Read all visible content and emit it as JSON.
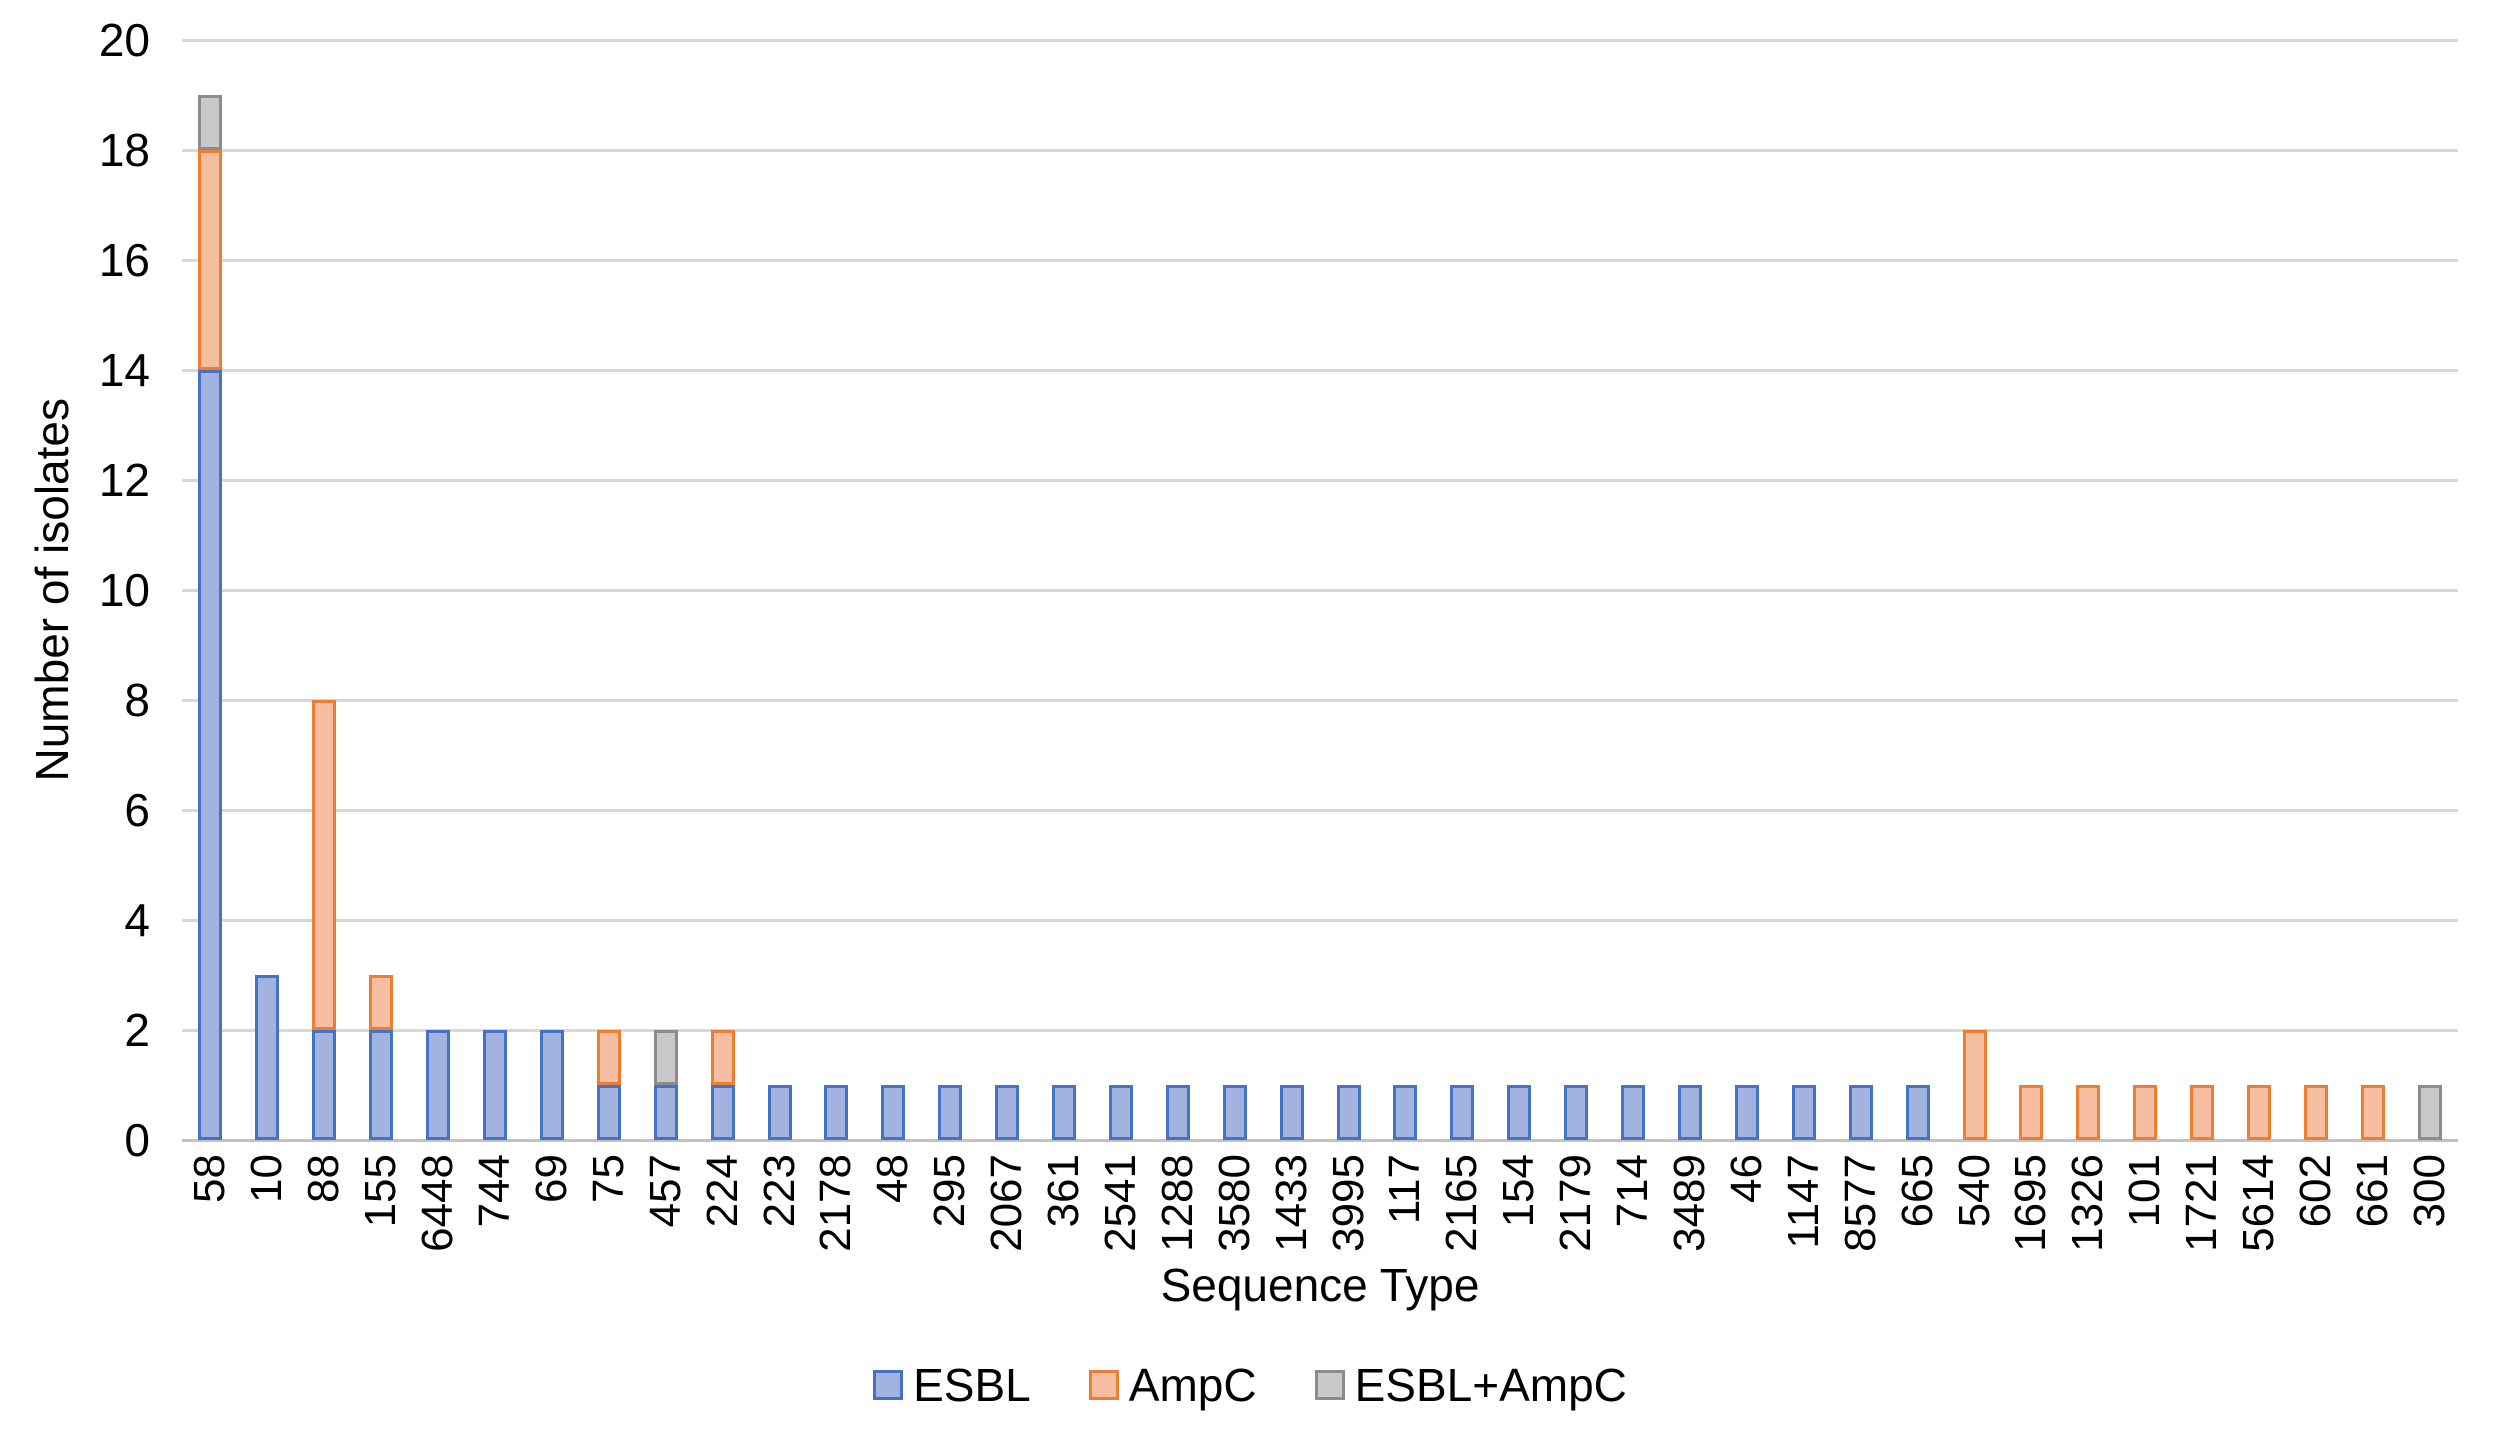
{
  "chart_data": {
    "type": "bar",
    "stacked": true,
    "title": "",
    "xlabel": "Sequence Type",
    "ylabel": "Number of isolates",
    "ylim": [
      0,
      20
    ],
    "ytick_step": 2,
    "grid": true,
    "legend_position": "bottom",
    "gridline_color": "#d8d8d8",
    "axisline_color": "#c2c2c2",
    "categories": [
      "58",
      "10",
      "88",
      "155",
      "6448",
      "744",
      "69",
      "75",
      "457",
      "224",
      "223",
      "2178",
      "48",
      "295",
      "2067",
      "361",
      "2541",
      "1288",
      "3580",
      "1433",
      "3995",
      "117",
      "2165",
      "154",
      "2179",
      "714",
      "3489",
      "46",
      "1147",
      "8577",
      "665",
      "540",
      "1695",
      "1326",
      "101",
      "1721",
      "5614",
      "602",
      "661",
      "300"
    ],
    "series": [
      {
        "name": "ESBL",
        "fill": "#a3b3df",
        "border": "#4472c4",
        "values": [
          14,
          3,
          2,
          2,
          2,
          2,
          2,
          1,
          1,
          1,
          1,
          1,
          1,
          1,
          1,
          1,
          1,
          1,
          1,
          1,
          1,
          1,
          1,
          1,
          1,
          1,
          1,
          1,
          1,
          1,
          1,
          0,
          0,
          0,
          0,
          0,
          0,
          0,
          0,
          0
        ]
      },
      {
        "name": "AmpC",
        "fill": "#f5bda2",
        "border": "#ed7d31",
        "values": [
          4,
          0,
          6,
          1,
          0,
          0,
          0,
          1,
          0,
          1,
          0,
          0,
          0,
          0,
          0,
          0,
          0,
          0,
          0,
          0,
          0,
          0,
          0,
          0,
          0,
          0,
          0,
          0,
          0,
          0,
          0,
          2,
          1,
          1,
          1,
          1,
          1,
          1,
          1,
          0
        ]
      },
      {
        "name": "ESBL+AmpC",
        "fill": "#c9c9c9",
        "border": "#8c8c8c",
        "values": [
          1,
          0,
          0,
          0,
          0,
          0,
          0,
          0,
          1,
          0,
          0,
          0,
          0,
          0,
          0,
          0,
          0,
          0,
          0,
          0,
          0,
          0,
          0,
          0,
          0,
          0,
          0,
          0,
          0,
          0,
          0,
          0,
          0,
          0,
          0,
          0,
          0,
          0,
          0,
          1
        ]
      }
    ]
  }
}
